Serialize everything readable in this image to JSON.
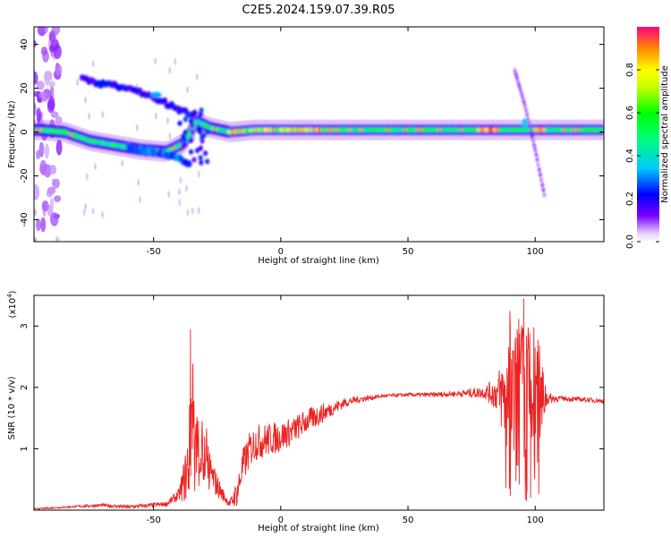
{
  "title": "C2E5.2024.159.07.39.R05",
  "chart_data": [
    {
      "type": "heatmap",
      "xlabel": "Height of straight line (km)",
      "ylabel": "Frequency (Hz)",
      "xlim": [
        -97,
        127
      ],
      "ylim": [
        -50,
        48
      ],
      "xticks": [
        -50,
        0,
        50,
        100
      ],
      "yticks": [
        -40,
        -20,
        0,
        20,
        40
      ],
      "colorbar": {
        "label": "Normalized spectral amplitude",
        "range": [
          0,
          1
        ],
        "ticks": [
          "0.0",
          "0.2",
          "0.4",
          "0.6",
          "0.8"
        ]
      },
      "features": [
        {
          "name": "main-trace",
          "x": [
            -95,
            -85,
            -75,
            -65,
            -55,
            -45,
            -38,
            -33,
            -28,
            -20,
            -10,
            0,
            20,
            50,
            90,
            127
          ],
          "y": [
            1,
            0,
            -4,
            -6,
            -8,
            -9,
            -5,
            5,
            2,
            0,
            1,
            1,
            1,
            1,
            1,
            1
          ]
        },
        {
          "name": "upper-branch",
          "x": [
            -78,
            -70,
            -60,
            -50,
            -40,
            -33
          ],
          "y": [
            24,
            22,
            20,
            16,
            10,
            8
          ]
        },
        {
          "name": "lower-branch",
          "x": [
            -60,
            -50,
            -40,
            -36
          ],
          "y": [
            -7,
            -9,
            -12,
            -14
          ]
        },
        {
          "name": "streak",
          "x": [
            92,
            96,
            100,
            104
          ],
          "y": [
            28,
            12,
            -8,
            -31
          ]
        }
      ]
    },
    {
      "type": "line",
      "xlabel": "Height of straight line (km)",
      "ylabel": "SNR (10 * v/v)",
      "yunit": "(x10",
      "yunit_exp": "4",
      "yunit_close": ")",
      "xlim": [
        -97,
        127
      ],
      "ylim": [
        0,
        3.5
      ],
      "xticks": [
        -50,
        0,
        50,
        100
      ],
      "yticks": [
        1,
        2,
        3
      ],
      "series": [
        {
          "color": "#ee2222",
          "envelope": {
            "x": [
              -97,
              -80,
              -70,
              -60,
              -45,
              -40,
              -37,
              -35,
              -33,
              -30,
              -27,
              -25,
              -22,
              -20,
              -17,
              -15,
              -12,
              -10,
              -5,
              0,
              5,
              10,
              15,
              20,
              25,
              30,
              40,
              50,
              60,
              70,
              75,
              80,
              85,
              88,
              90,
              93,
              95,
              97,
              99,
              101,
              103,
              104,
              105,
              110,
              120,
              127
            ],
            "y": [
              0.02,
              0.06,
              0.08,
              0.05,
              0.1,
              0.25,
              0.6,
              1.2,
              1.0,
              0.8,
              0.55,
              0.4,
              0.2,
              0.1,
              0.3,
              0.7,
              1.0,
              1.1,
              1.15,
              1.2,
              1.3,
              1.45,
              1.55,
              1.65,
              1.75,
              1.8,
              1.86,
              1.88,
              1.88,
              1.9,
              1.91,
              1.92,
              1.9,
              1.85,
              1.8,
              1.7,
              1.75,
              1.8,
              1.7,
              1.75,
              1.8,
              1.85,
              1.82,
              1.82,
              1.8,
              1.78
            ]
          },
          "noise": {
            "x": [
              -97,
              -80,
              -45,
              -40,
              -37,
              -35,
              -33,
              -30,
              -27,
              -25,
              -22,
              -20,
              -17,
              -15,
              -12,
              -10,
              -5,
              0,
              5,
              10,
              15,
              20,
              25,
              30,
              40,
              50,
              60,
              70,
              75,
              80,
              85,
              88,
              90,
              93,
              95,
              97,
              99,
              101,
              103,
              104,
              105,
              110,
              120,
              127
            ],
            "y": [
              0.01,
              0.02,
              0.04,
              0.1,
              0.5,
              0.9,
              0.7,
              0.5,
              0.3,
              0.2,
              0.08,
              0.06,
              0.25,
              0.3,
              0.3,
              0.3,
              0.28,
              0.25,
              0.22,
              0.2,
              0.18,
              0.12,
              0.08,
              0.06,
              0.03,
              0.03,
              0.04,
              0.05,
              0.08,
              0.1,
              0.3,
              0.8,
              1.0,
              1.2,
              1.4,
              1.3,
              1.2,
              1.0,
              0.6,
              0.3,
              0.1,
              0.04,
              0.04,
              0.04
            ]
          },
          "peaks": [
            {
              "x": -35.5,
              "y": 2.95
            },
            {
              "x": -34.5,
              "y": 2.2
            },
            {
              "x": 95.5,
              "y": 3.45
            },
            {
              "x": 96.6,
              "y": 0.15
            },
            {
              "x": 90.2,
              "y": 3.0
            },
            {
              "x": 98.2,
              "y": 0.2
            }
          ]
        }
      ]
    }
  ]
}
